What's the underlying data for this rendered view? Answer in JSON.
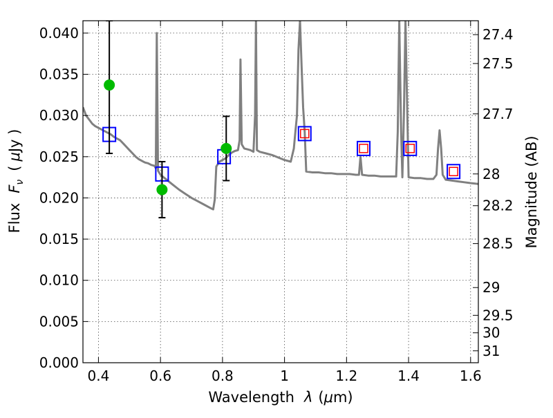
{
  "chart_data": {
    "type": "scatter",
    "xlabel_text": "Wavelength",
    "xlabel_symbol": "λ",
    "xlabel_unit_open": "(",
    "xlabel_unit_mu": "μ",
    "xlabel_unit_rest": "m)",
    "ylabel_text": "Flux",
    "ylabel_symbol": "F",
    "ylabel_sub": "ν",
    "ylabel_unit_open": "(",
    "ylabel_unit_mu": "μ",
    "ylabel_unit_rest": "Jy )",
    "y2label": "Magnitude (AB)",
    "xlim": [
      0.35,
      1.625
    ],
    "ylim": [
      0.0,
      0.0415
    ],
    "x_ticks": [
      0.4,
      0.6,
      0.8,
      1.0,
      1.2,
      1.4,
      1.6
    ],
    "x_tick_labels": [
      "0.4",
      "0.6",
      "0.8",
      "1",
      "1.2",
      "1.4",
      "1.6"
    ],
    "y_ticks": [
      0.0,
      0.005,
      0.01,
      0.015,
      0.02,
      0.025,
      0.03,
      0.035,
      0.04
    ],
    "y_tick_labels": [
      "0.000",
      "0.005",
      "0.010",
      "0.015",
      "0.020",
      "0.025",
      "0.030",
      "0.035",
      "0.040"
    ],
    "mag_ticks": [
      27.4,
      27.5,
      27.7,
      28,
      28.2,
      28.5,
      29,
      29.5,
      30,
      31
    ],
    "mag_tick_labels": [
      "27.4",
      "27.5",
      "27.7",
      "28",
      "28.2",
      "28.5",
      "29",
      "29.5",
      "30",
      "31"
    ],
    "grid": true,
    "colors": {
      "spectrum": "#808080",
      "observed": "#00bb00",
      "model_box": "#0000ff",
      "inner_box": "#ff0000",
      "errorbar": "#000000"
    },
    "series": [
      {
        "kind": "line",
        "points": [
          [
            0.35,
            0.031
          ],
          [
            0.36,
            0.03
          ],
          [
            0.37,
            0.0295
          ],
          [
            0.38,
            0.029
          ],
          [
            0.39,
            0.0287
          ],
          [
            0.4,
            0.0285
          ],
          [
            0.41,
            0.0283
          ],
          [
            0.42,
            0.0281
          ],
          [
            0.43,
            0.0279
          ],
          [
            0.44,
            0.0277
          ],
          [
            0.45,
            0.0274
          ],
          [
            0.46,
            0.0272
          ],
          [
            0.47,
            0.027
          ],
          [
            0.48,
            0.0266
          ],
          [
            0.49,
            0.0262
          ],
          [
            0.5,
            0.0258
          ],
          [
            0.51,
            0.0254
          ],
          [
            0.52,
            0.025
          ],
          [
            0.53,
            0.0247
          ],
          [
            0.54,
            0.0245
          ],
          [
            0.55,
            0.0243
          ],
          [
            0.56,
            0.0242
          ],
          [
            0.57,
            0.024
          ],
          [
            0.58,
            0.0239
          ],
          [
            0.585,
            0.0236
          ],
          [
            0.588,
            0.04
          ],
          [
            0.592,
            0.0233
          ],
          [
            0.6,
            0.0228
          ],
          [
            0.62,
            0.0222
          ],
          [
            0.64,
            0.0216
          ],
          [
            0.66,
            0.021
          ],
          [
            0.68,
            0.0205
          ],
          [
            0.7,
            0.02
          ],
          [
            0.72,
            0.0196
          ],
          [
            0.74,
            0.0192
          ],
          [
            0.76,
            0.0188
          ],
          [
            0.77,
            0.0186
          ],
          [
            0.775,
            0.0198
          ],
          [
            0.78,
            0.0238
          ],
          [
            0.79,
            0.0244
          ],
          [
            0.8,
            0.0246
          ],
          [
            0.81,
            0.0248
          ],
          [
            0.82,
            0.0252
          ],
          [
            0.83,
            0.0255
          ],
          [
            0.84,
            0.0257
          ],
          [
            0.85,
            0.0258
          ],
          [
            0.855,
            0.027
          ],
          [
            0.858,
            0.0368
          ],
          [
            0.862,
            0.0265
          ],
          [
            0.87,
            0.026
          ],
          [
            0.88,
            0.0259
          ],
          [
            0.89,
            0.0258
          ],
          [
            0.9,
            0.0256
          ],
          [
            0.905,
            0.03
          ],
          [
            0.908,
            0.0415
          ],
          [
            0.911,
            0.0258
          ],
          [
            0.92,
            0.0256
          ],
          [
            0.94,
            0.0254
          ],
          [
            0.96,
            0.0252
          ],
          [
            0.98,
            0.0249
          ],
          [
            1.0,
            0.0246
          ],
          [
            1.02,
            0.0244
          ],
          [
            1.03,
            0.026
          ],
          [
            1.035,
            0.028
          ],
          [
            1.04,
            0.03
          ],
          [
            1.045,
            0.038
          ],
          [
            1.05,
            0.0415
          ],
          [
            1.055,
            0.036
          ],
          [
            1.06,
            0.031
          ],
          [
            1.065,
            0.028
          ],
          [
            1.07,
            0.0232
          ],
          [
            1.09,
            0.0231
          ],
          [
            1.11,
            0.0231
          ],
          [
            1.13,
            0.023
          ],
          [
            1.15,
            0.023
          ],
          [
            1.17,
            0.0229
          ],
          [
            1.19,
            0.0229
          ],
          [
            1.21,
            0.0229
          ],
          [
            1.23,
            0.0228
          ],
          [
            1.24,
            0.0228
          ],
          [
            1.245,
            0.025
          ],
          [
            1.25,
            0.0228
          ],
          [
            1.27,
            0.0227
          ],
          [
            1.29,
            0.0227
          ],
          [
            1.31,
            0.0226
          ],
          [
            1.33,
            0.0226
          ],
          [
            1.35,
            0.0226
          ],
          [
            1.36,
            0.0226
          ],
          [
            1.365,
            0.028
          ],
          [
            1.37,
            0.0415
          ],
          [
            1.376,
            0.028
          ],
          [
            1.38,
            0.0225
          ],
          [
            1.385,
            0.03
          ],
          [
            1.39,
            0.0415
          ],
          [
            1.396,
            0.03
          ],
          [
            1.4,
            0.0225
          ],
          [
            1.42,
            0.0224
          ],
          [
            1.44,
            0.0224
          ],
          [
            1.46,
            0.0223
          ],
          [
            1.48,
            0.0223
          ],
          [
            1.49,
            0.0228
          ],
          [
            1.495,
            0.026
          ],
          [
            1.5,
            0.0282
          ],
          [
            1.505,
            0.026
          ],
          [
            1.51,
            0.0228
          ],
          [
            1.52,
            0.0222
          ],
          [
            1.54,
            0.0221
          ],
          [
            1.56,
            0.022
          ],
          [
            1.58,
            0.0219
          ],
          [
            1.6,
            0.0218
          ],
          [
            1.625,
            0.0217
          ]
        ]
      },
      {
        "kind": "observed",
        "points": [
          {
            "x": 0.435,
            "y": 0.0337,
            "err_low": 0.0254,
            "err_high": 0.0415
          },
          {
            "x": 0.605,
            "y": 0.021,
            "err_low": 0.0176,
            "err_high": 0.0244
          },
          {
            "x": 0.812,
            "y": 0.026,
            "err_low": 0.0221,
            "err_high": 0.0299
          }
        ]
      },
      {
        "kind": "model",
        "points": [
          {
            "x": 0.435,
            "y": 0.0277,
            "inner": false
          },
          {
            "x": 0.605,
            "y": 0.0229,
            "inner": false
          },
          {
            "x": 0.805,
            "y": 0.025,
            "inner": false
          },
          {
            "x": 1.065,
            "y": 0.0278,
            "inner": true
          },
          {
            "x": 1.255,
            "y": 0.026,
            "inner": true
          },
          {
            "x": 1.405,
            "y": 0.026,
            "inner": true
          },
          {
            "x": 1.545,
            "y": 0.0232,
            "inner": true
          }
        ]
      }
    ]
  }
}
